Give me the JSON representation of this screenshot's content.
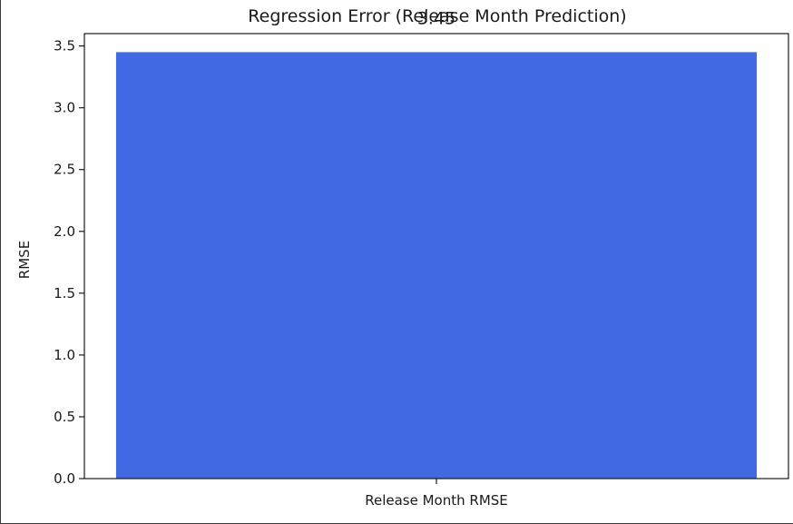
{
  "chart_data": {
    "type": "bar",
    "title": "Regression Error (Release Month Prediction)",
    "xlabel": "",
    "ylabel": "RMSE",
    "categories": [
      "Release Month RMSE"
    ],
    "values": [
      3.45
    ],
    "data_labels": [
      "3.45"
    ],
    "ylim": [
      0,
      3.6
    ],
    "yticks": [
      "0.0",
      "0.5",
      "1.0",
      "1.5",
      "2.0",
      "2.5",
      "3.0",
      "3.5"
    ],
    "bar_color": "#4169e1",
    "grid": false,
    "legend": "none"
  }
}
